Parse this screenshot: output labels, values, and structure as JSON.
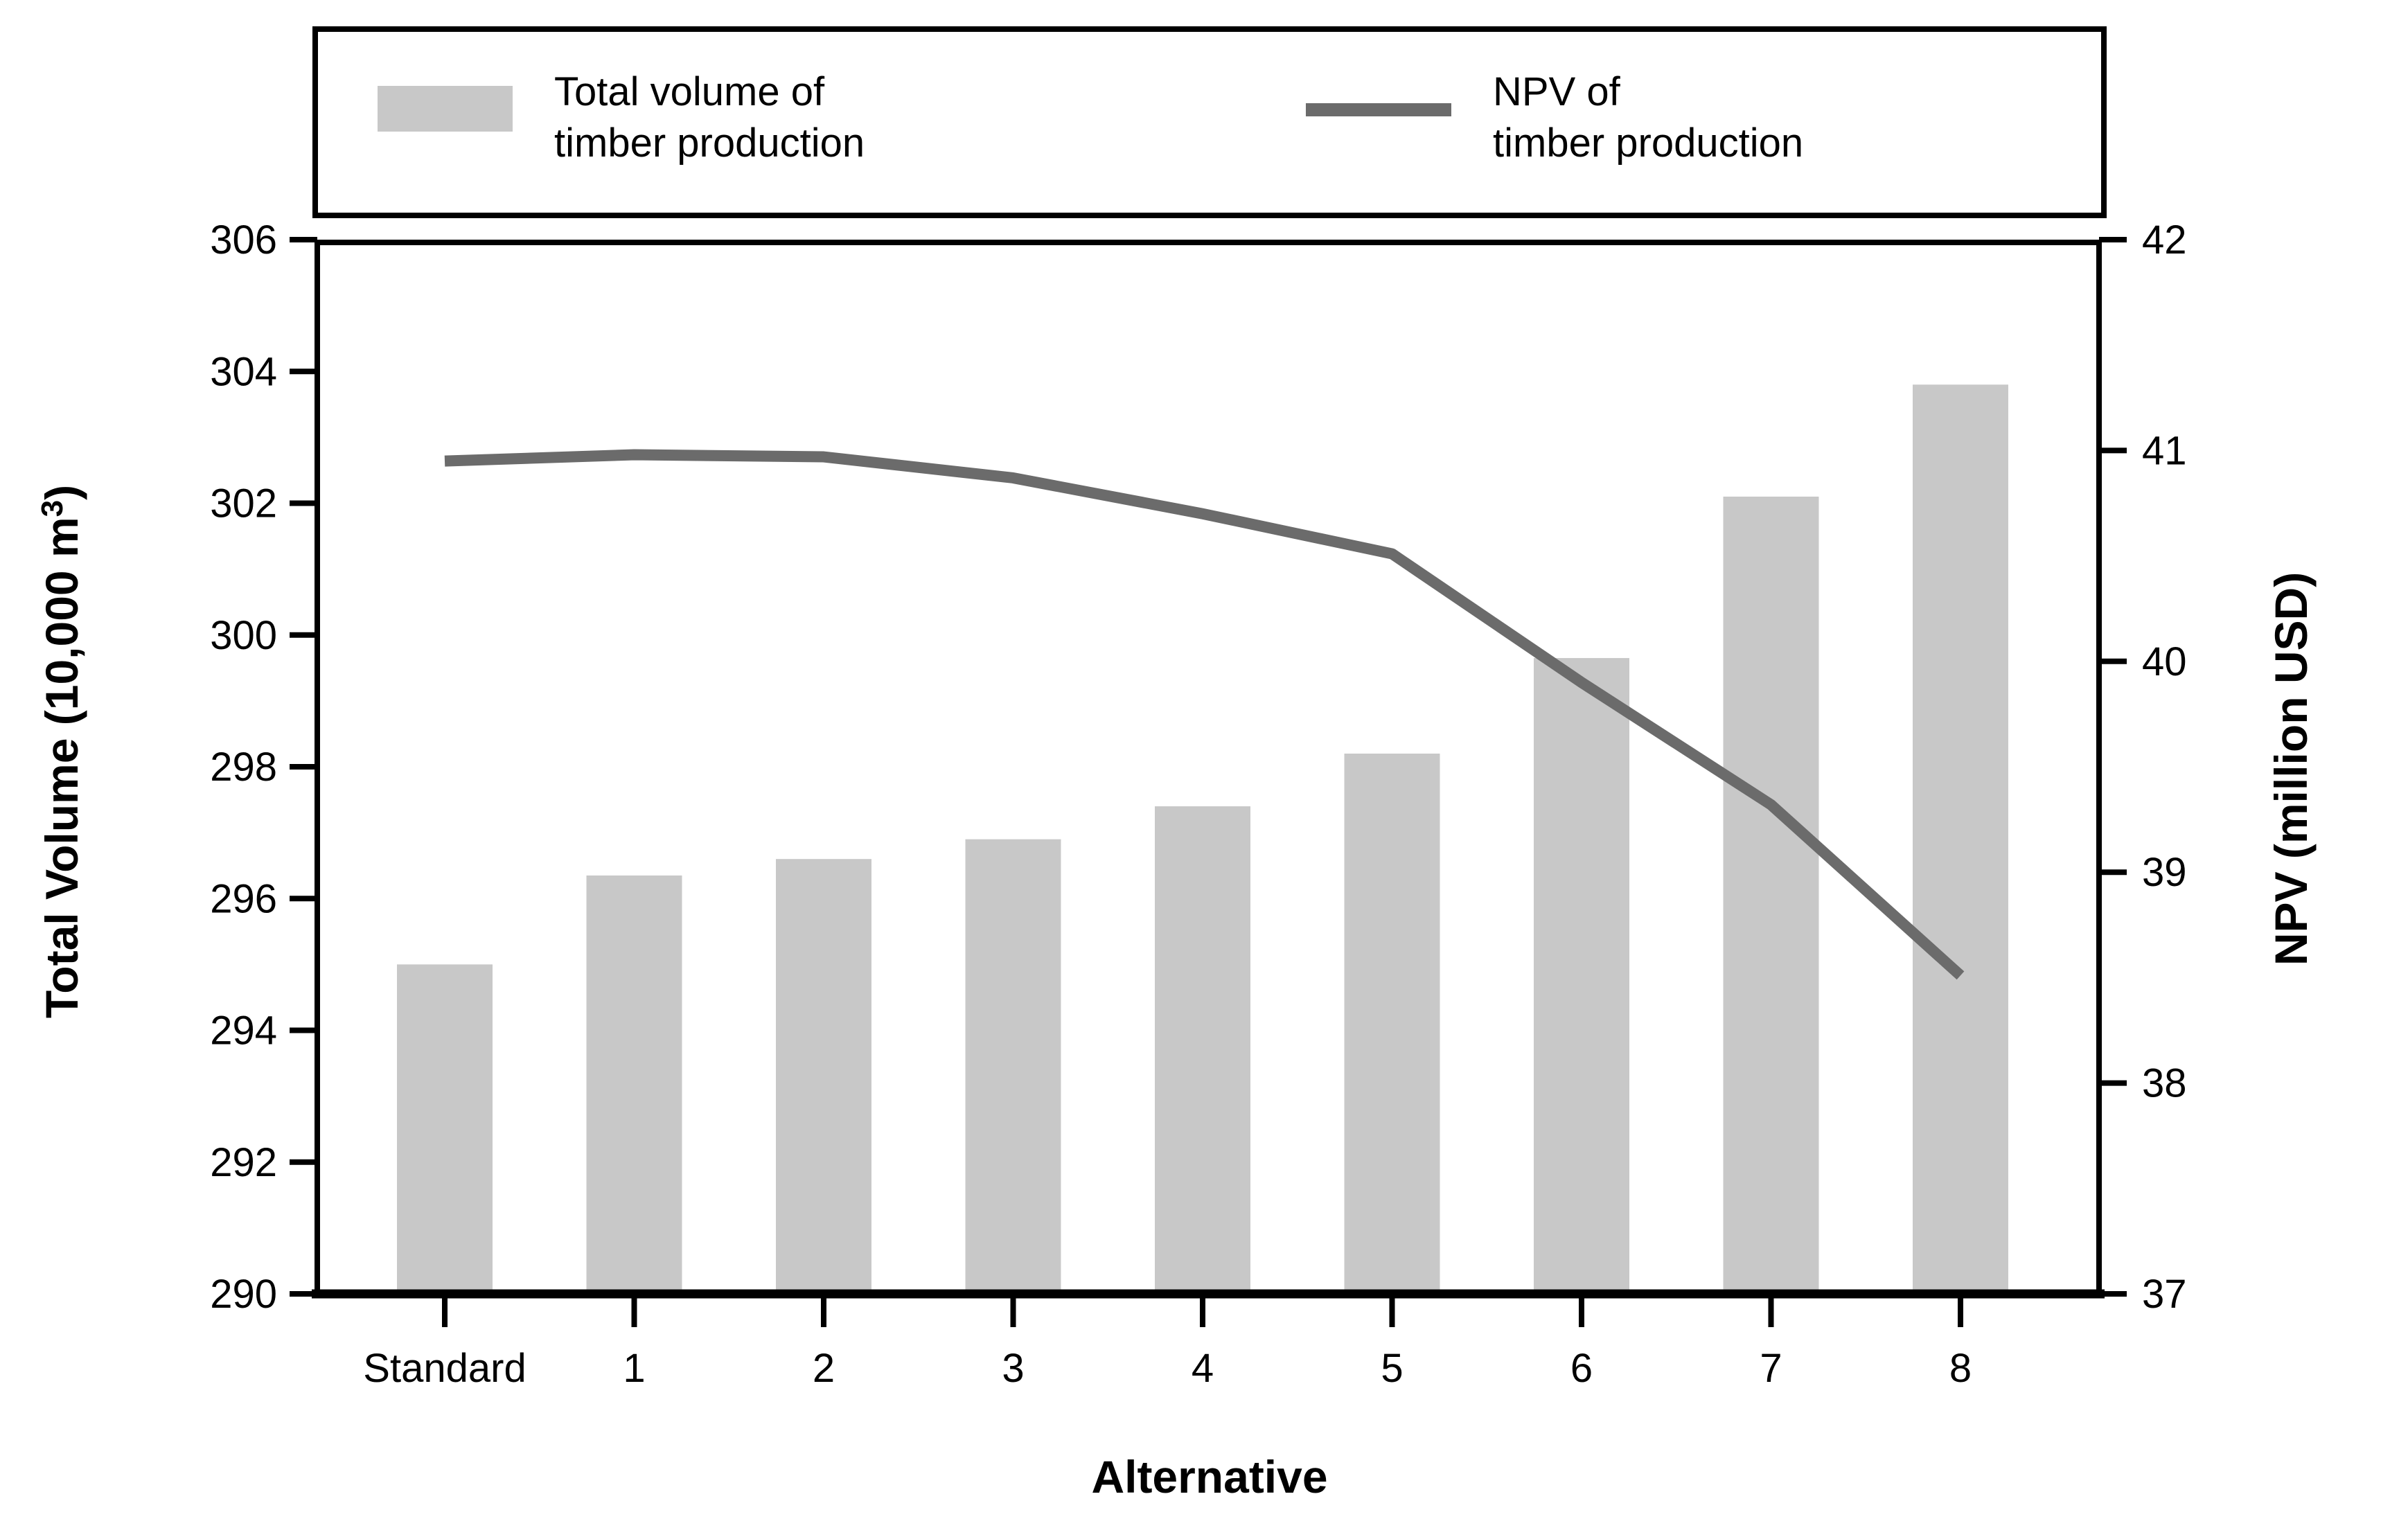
{
  "figure": {
    "background": "#ffffff",
    "accent_black": "#000000"
  },
  "legend": {
    "items": [
      {
        "swatch": "bar-swatch",
        "color": "#c8c8c8",
        "label_line1": "Total volume of",
        "label_line2": "timber production"
      },
      {
        "swatch": "line-swatch",
        "color": "#6b6b6b",
        "label_line1": "NPV of",
        "label_line2": "timber production"
      }
    ]
  },
  "chart_data": {
    "type": "bar",
    "subtype": "bar+line dual axis",
    "categories": [
      "Standard",
      "1",
      "2",
      "3",
      "4",
      "5",
      "6",
      "7",
      "8"
    ],
    "series": [
      {
        "name": "Total volume of timber production",
        "type": "bar",
        "axis": "left",
        "color": "#c8c8c8",
        "values": [
          295.0,
          296.35,
          296.6,
          296.9,
          297.4,
          298.2,
          299.65,
          302.1,
          303.8
        ]
      },
      {
        "name": "NPV of timber production",
        "type": "line",
        "axis": "right",
        "color": "#6b6b6b",
        "values": [
          40.95,
          40.98,
          40.97,
          40.87,
          40.7,
          40.51,
          39.9,
          39.32,
          38.51
        ]
      }
    ],
    "xlabel": "Alternative",
    "left_axis": {
      "label": "Total Volume (10,000 m³)",
      "label_parts": {
        "pre": "Total Volume (10,000 m",
        "sup": "3",
        "post": ")"
      },
      "min": 290,
      "max": 306,
      "tick_step": 2,
      "ticks": [
        306,
        304,
        302,
        300,
        298,
        296,
        294,
        292,
        290
      ]
    },
    "right_axis": {
      "label": "NPV (million USD)",
      "min": 37,
      "max": 42,
      "tick_step": 1,
      "ticks": [
        42,
        41,
        40,
        39,
        38,
        37
      ]
    },
    "grid": false,
    "legend_position": "top"
  }
}
